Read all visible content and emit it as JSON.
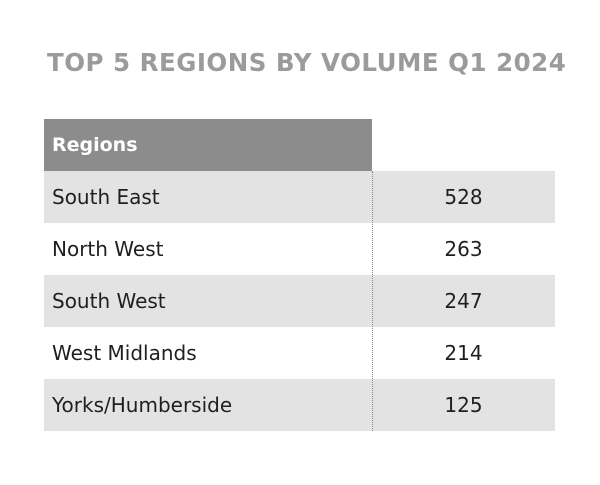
{
  "chart_data": {
    "type": "table",
    "title": "TOP 5 REGIONS BY VOLUME Q1 2024",
    "columns": [
      "Regions",
      ""
    ],
    "rows": [
      {
        "region": "South East",
        "value": 528
      },
      {
        "region": "North West",
        "value": 263
      },
      {
        "region": "South West",
        "value": 247
      },
      {
        "region": "West Midlands",
        "value": 214
      },
      {
        "region": "Yorks/Humberside",
        "value": 125
      }
    ],
    "colors": {
      "title": "#9b9b9b",
      "header_bg": "#8c8c8c",
      "row_shade": "#e3e3e3"
    }
  }
}
